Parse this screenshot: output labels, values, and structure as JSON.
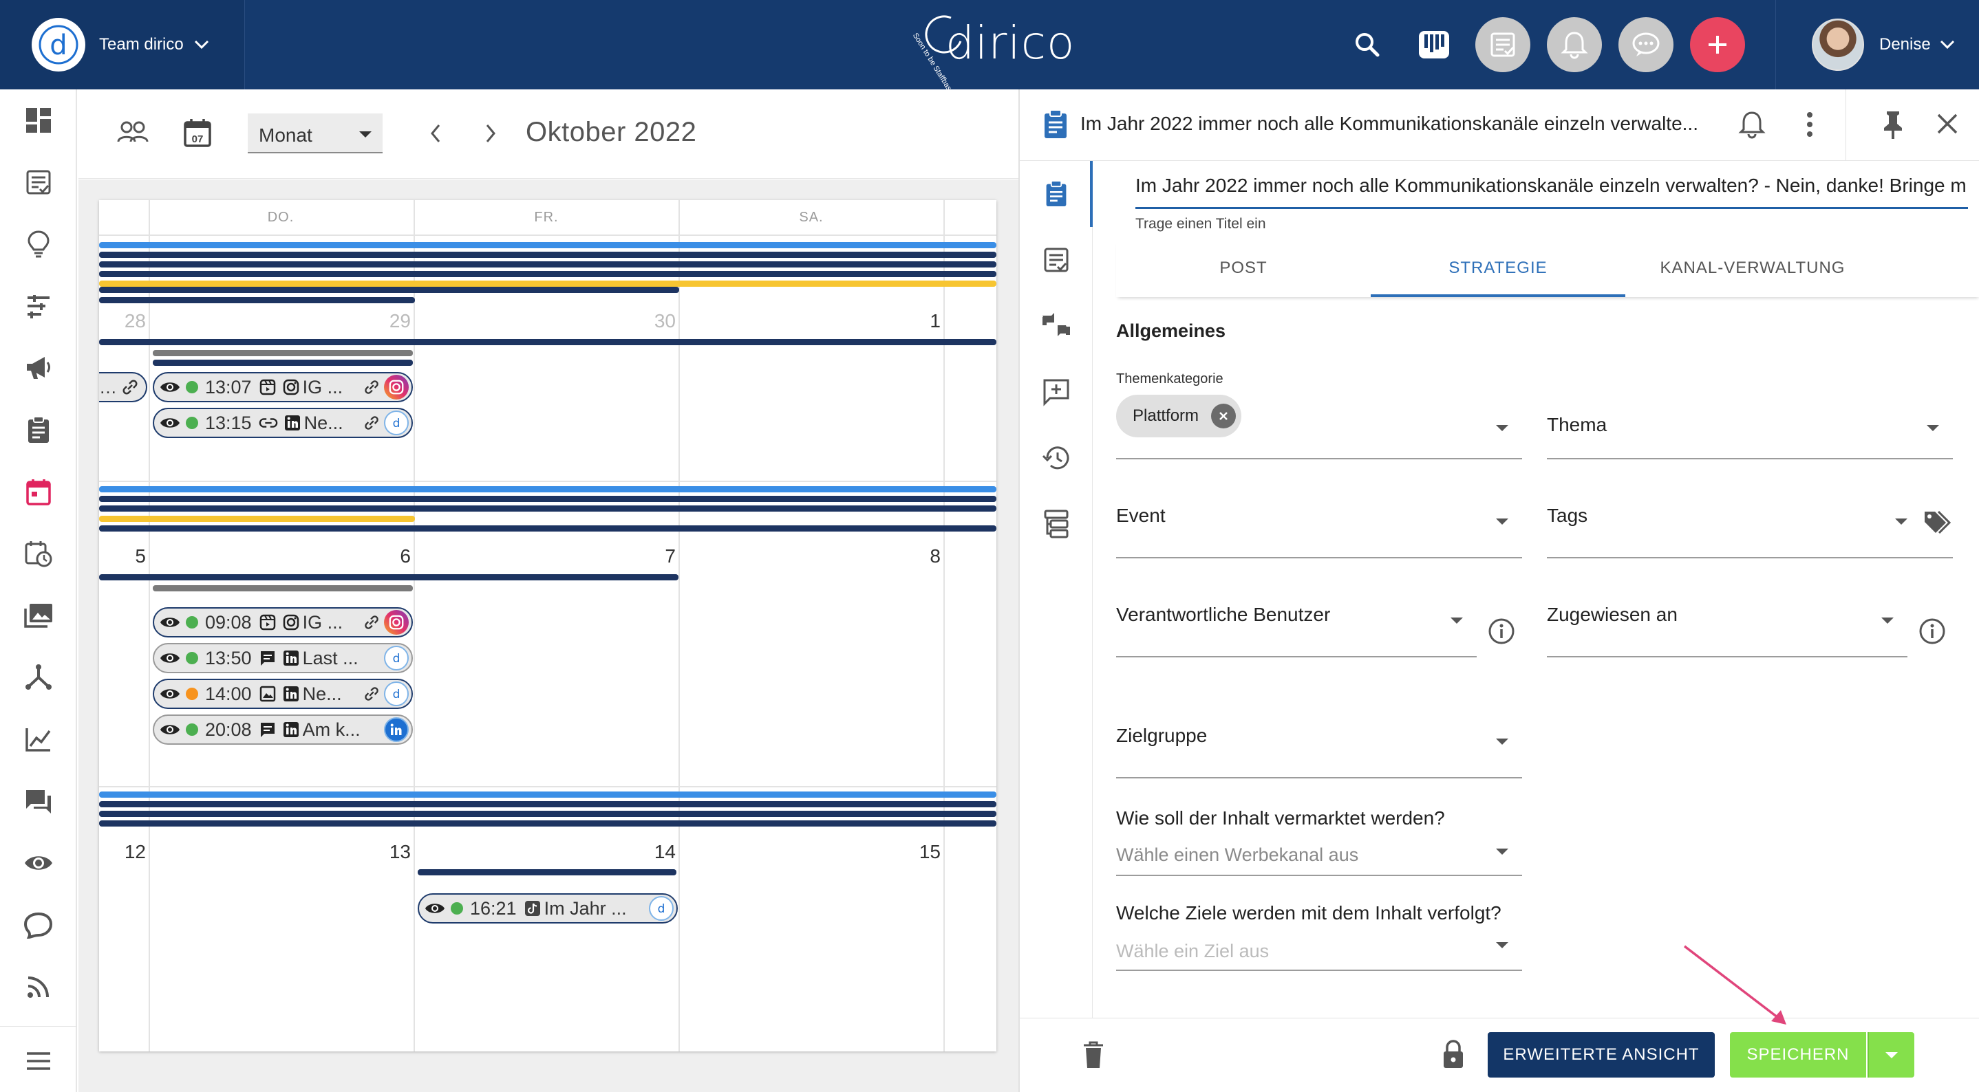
{
  "topbar": {
    "team_name": "Team dirico",
    "brand": "dirico",
    "brand_tagline": "Soon to be Staffbase",
    "user_name": "Denise",
    "icons": [
      "search-icon",
      "kanban-board-icon",
      "task-list-icon",
      "bell-icon",
      "chat-icon",
      "plus-icon"
    ],
    "colors": {
      "bar": "#153a6e",
      "add": "#e94560"
    }
  },
  "sidebar": {
    "items": [
      "dashboard-icon",
      "posts-icon",
      "ideas-icon",
      "planning-icon",
      "campaigns-icon",
      "tasks-icon",
      "calendar-icon",
      "schedule-icon",
      "media-icon",
      "network-icon",
      "analytics-icon",
      "comments-icon",
      "monitoring-icon",
      "social-icon",
      "rss-icon"
    ],
    "menu": "menu-icon"
  },
  "calendar": {
    "view_mode": "Monat",
    "month_label": "Oktober 2022",
    "weekdays": [
      "DO.",
      "FR.",
      "SA."
    ],
    "weeks": [
      {
        "days": [
          "28",
          "29",
          "30",
          "1"
        ]
      },
      {
        "days": [
          "5",
          "6",
          "7",
          "8"
        ]
      },
      {
        "days": [
          "12",
          "13",
          "14",
          "15"
        ]
      }
    ],
    "events": [
      {
        "time": "13:07",
        "title": "IG ...",
        "status": "green",
        "network": "instagram"
      },
      {
        "time": "13:15",
        "title": "Ne...",
        "status": "green",
        "network": "dirico"
      },
      {
        "time": "09:08",
        "title": "IG ...",
        "status": "green",
        "network": "instagram"
      },
      {
        "time": "13:50",
        "title": "Last ...",
        "status": "green",
        "network": "dirico"
      },
      {
        "time": "14:00",
        "title": "Ne...",
        "status": "orange",
        "network": "dirico"
      },
      {
        "time": "20:08",
        "title": "Am k...",
        "status": "green",
        "network": "linkedin"
      },
      {
        "time": "16:21",
        "title": "Im Jahr ...",
        "status": "green",
        "network": "dirico"
      }
    ],
    "colors": {
      "navy": "#1d3461",
      "blue": "#3a8ee6",
      "yellow": "#f7c531",
      "gray": "#7a7a7a",
      "green": "#4caf50",
      "orange": "#f7931e"
    }
  },
  "panel": {
    "header_title": "Im Jahr 2022 immer noch alle Kommunikationskanäle einzeln verwalte...",
    "title_value": "Im Jahr 2022 immer noch alle Kommunikationskanäle einzeln verwalten? - Nein, danke! Bringe m",
    "title_hint": "Trage einen Titel ein",
    "tabs": [
      "POST",
      "STRATEGIE",
      "KANAL-VERWALTUNG"
    ],
    "active_tab": "STRATEGIE",
    "section": "Allgemeines",
    "fields": {
      "themenkategorie_label": "Themenkategorie",
      "themenkategorie_chip": "Plattform",
      "thema": "Thema",
      "event": "Event",
      "tags": "Tags",
      "verantwortliche": "Verantwortliche Benutzer",
      "zugewiesen": "Zugewiesen an",
      "zielgruppe": "Zielgruppe"
    },
    "q_vermarktet": "Wie soll der Inhalt vermarktet werden?",
    "q_vermarktet_placeholder": "Wähle einen Werbekanal aus",
    "q_ziele": "Welche Ziele werden mit dem Inhalt verfolgt?",
    "q_ziele_placeholder": "Wähle ein Ziel aus",
    "footer": {
      "erweitert_label": "ERWEITERTE ANSICHT",
      "save_label": "SPEICHERN"
    },
    "colors": {
      "accent": "#2d6fb8",
      "save": "#85e04b",
      "dark": "#133667"
    }
  }
}
